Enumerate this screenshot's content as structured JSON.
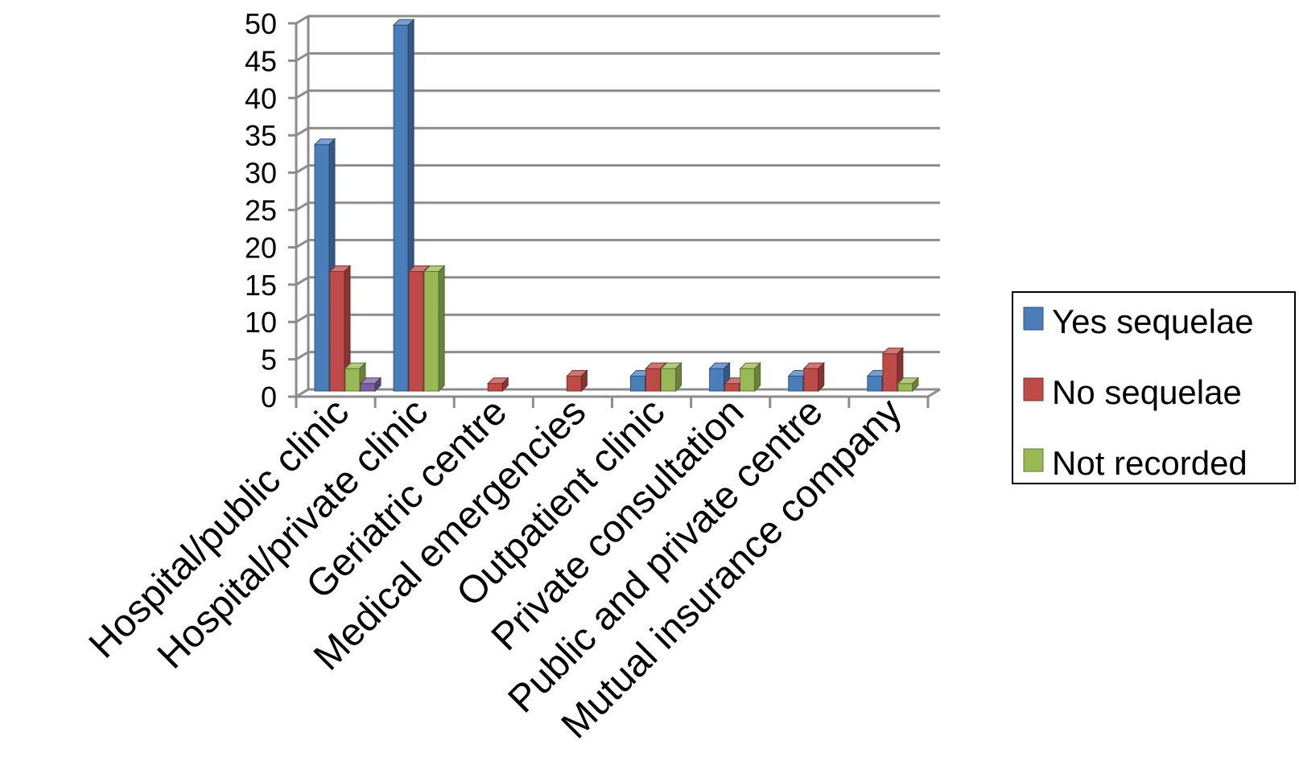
{
  "chart_data": {
    "type": "bar",
    "title": "",
    "xlabel": "",
    "ylabel": "",
    "ylim": [
      0,
      50
    ],
    "yticks": [
      0,
      5,
      10,
      15,
      20,
      25,
      30,
      35,
      40,
      45,
      50
    ],
    "grid": true,
    "legend_position": "right",
    "categories": [
      "Hospital/public clinic",
      "Hospital/private clinic",
      "Geriatric centre",
      "Medical emergencies",
      "Outpatient clinic",
      "Private consultation",
      "Public and private centre",
      "Mutual insurance company"
    ],
    "series": [
      {
        "name": "Yes sequelae",
        "color": "#4a7ebb",
        "values": [
          33,
          49,
          0,
          0,
          2,
          3,
          2,
          2
        ]
      },
      {
        "name": "No sequelae",
        "color": "#be4b48",
        "values": [
          16,
          16,
          1,
          2,
          3,
          1,
          3,
          5
        ]
      },
      {
        "name": "Not recorded",
        "color": "#98b954",
        "values": [
          3,
          16,
          0,
          0,
          3,
          3,
          0,
          1
        ]
      },
      {
        "color": "#7d60a0",
        "values": [
          1,
          0,
          0,
          0,
          0,
          0,
          0,
          0
        ]
      }
    ]
  }
}
